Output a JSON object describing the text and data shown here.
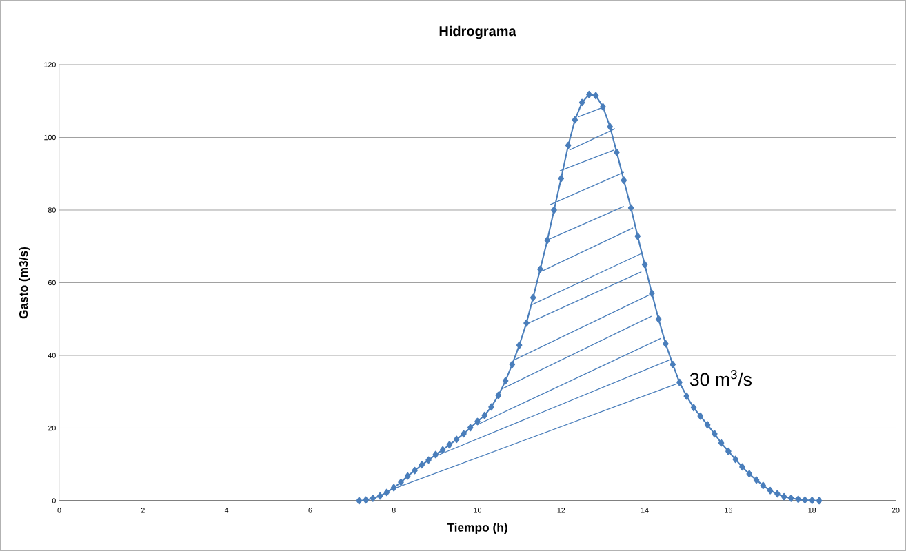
{
  "chart_data": {
    "type": "line",
    "title": "Hidrograma",
    "xlabel": "Tiempo (h)",
    "ylabel": "Gasto (m3/s)",
    "xlim": [
      0,
      20
    ],
    "xticks": [
      0,
      2,
      4,
      6,
      8,
      10,
      12,
      14,
      16,
      18,
      20
    ],
    "ylim": [
      0,
      120
    ],
    "yticks": [
      0,
      20,
      40,
      60,
      80,
      100,
      120
    ],
    "grid": "y",
    "marker": "diamond",
    "line_style": "solid",
    "annotations": [
      {
        "text": "30 m$^{3}$/s",
        "x": 14.77,
        "y": 32.2
      }
    ],
    "series": [
      {
        "color": "#4a7ebb",
        "x": [
          7.17,
          7.33,
          7.5,
          7.67,
          7.83,
          8,
          8.17,
          8.33,
          8.5,
          8.67,
          8.83,
          9,
          9.17,
          9.33,
          9.5,
          9.67,
          9.83,
          10,
          10.17,
          10.33,
          10.5,
          10.67,
          10.83,
          11,
          11.17,
          11.33,
          11.5,
          11.67,
          11.83,
          12,
          12.17,
          12.33,
          12.5,
          12.67,
          12.83,
          13,
          13.17,
          13.33,
          13.5,
          13.67,
          13.83,
          14,
          14.17,
          14.33,
          14.5,
          14.67,
          14.83,
          15,
          15.17,
          15.33,
          15.5,
          15.67,
          15.83,
          16,
          16.17,
          16.33,
          16.5,
          16.67,
          16.83,
          17,
          17.17,
          17.33,
          17.5,
          17.67,
          17.83,
          18,
          18.17
        ],
        "values": [
          0,
          0.2,
          0.7,
          1.3,
          2.3,
          3.6,
          5.1,
          6.8,
          8.3,
          9.9,
          11.2,
          12.7,
          14.0,
          15.4,
          16.9,
          18.4,
          20.1,
          21.8,
          23.5,
          25.8,
          29.0,
          33.0,
          37.5,
          42.8,
          48.9,
          55.9,
          63.7,
          71.7,
          80,
          88.7,
          97.8,
          104.8,
          109.6,
          111.8,
          111.5,
          108.4,
          102.9,
          95.9,
          88.2,
          80.6,
          72.8,
          65.0,
          57.1,
          50.0,
          43.2,
          37.5,
          32.6,
          28.8,
          25.6,
          23.3,
          20.9,
          18.4,
          15.9,
          13.6,
          11.4,
          9.3,
          7.4,
          5.7,
          4.2,
          2.8,
          1.9,
          1.1,
          0.7,
          0.4,
          0.2,
          0.1,
          0
        ]
      },
      {
        "color": "#4a7ebb",
        "marker": "none",
        "x": [
          8.06,
          14.77
        ],
        "values": [
          3.6,
          32.2
        ]
      },
      {
        "color": "#4a7ebb",
        "marker": "none",
        "x": [
          9.09,
          14.58
        ],
        "values": [
          12.7,
          38.7
        ]
      },
      {
        "color": "#4a7ebb",
        "marker": "none",
        "x": [
          9.99,
          14.39
        ],
        "values": [
          20.9,
          44.7
        ]
      },
      {
        "color": "#4a7ebb",
        "marker": "none",
        "x": [
          10.57,
          14.16
        ],
        "values": [
          30.7,
          50.8
        ]
      },
      {
        "color": "#4a7ebb",
        "marker": "none",
        "x": [
          10.87,
          14.12
        ],
        "values": [
          38.7,
          56.7
        ]
      },
      {
        "color": "#4a7ebb",
        "marker": "none",
        "x": [
          11.2,
          13.92
        ],
        "values": [
          48.8,
          63.0
        ]
      },
      {
        "color": "#4a7ebb",
        "marker": "none",
        "x": [
          11.31,
          13.95
        ],
        "values": [
          54.0,
          68.2
        ]
      },
      {
        "color": "#4a7ebb",
        "marker": "none",
        "x": [
          11.56,
          13.72
        ],
        "values": [
          63.3,
          75.1
        ]
      },
      {
        "color": "#4a7ebb",
        "marker": "none",
        "x": [
          11.74,
          13.5
        ],
        "values": [
          72.1,
          81.0
        ]
      },
      {
        "color": "#4a7ebb",
        "marker": "none",
        "x": [
          11.74,
          13.5
        ],
        "values": [
          81.5,
          90.4
        ]
      },
      {
        "color": "#4a7ebb",
        "marker": "none",
        "x": [
          11.97,
          13.26
        ],
        "values": [
          90.8,
          96.5
        ]
      },
      {
        "color": "#4a7ebb",
        "marker": "none",
        "x": [
          12.2,
          13.29
        ],
        "values": [
          96.5,
          102.4
        ]
      },
      {
        "color": "#4a7ebb",
        "marker": "none",
        "x": [
          12.4,
          12.96
        ],
        "values": [
          105.6,
          108.1
        ]
      }
    ]
  }
}
